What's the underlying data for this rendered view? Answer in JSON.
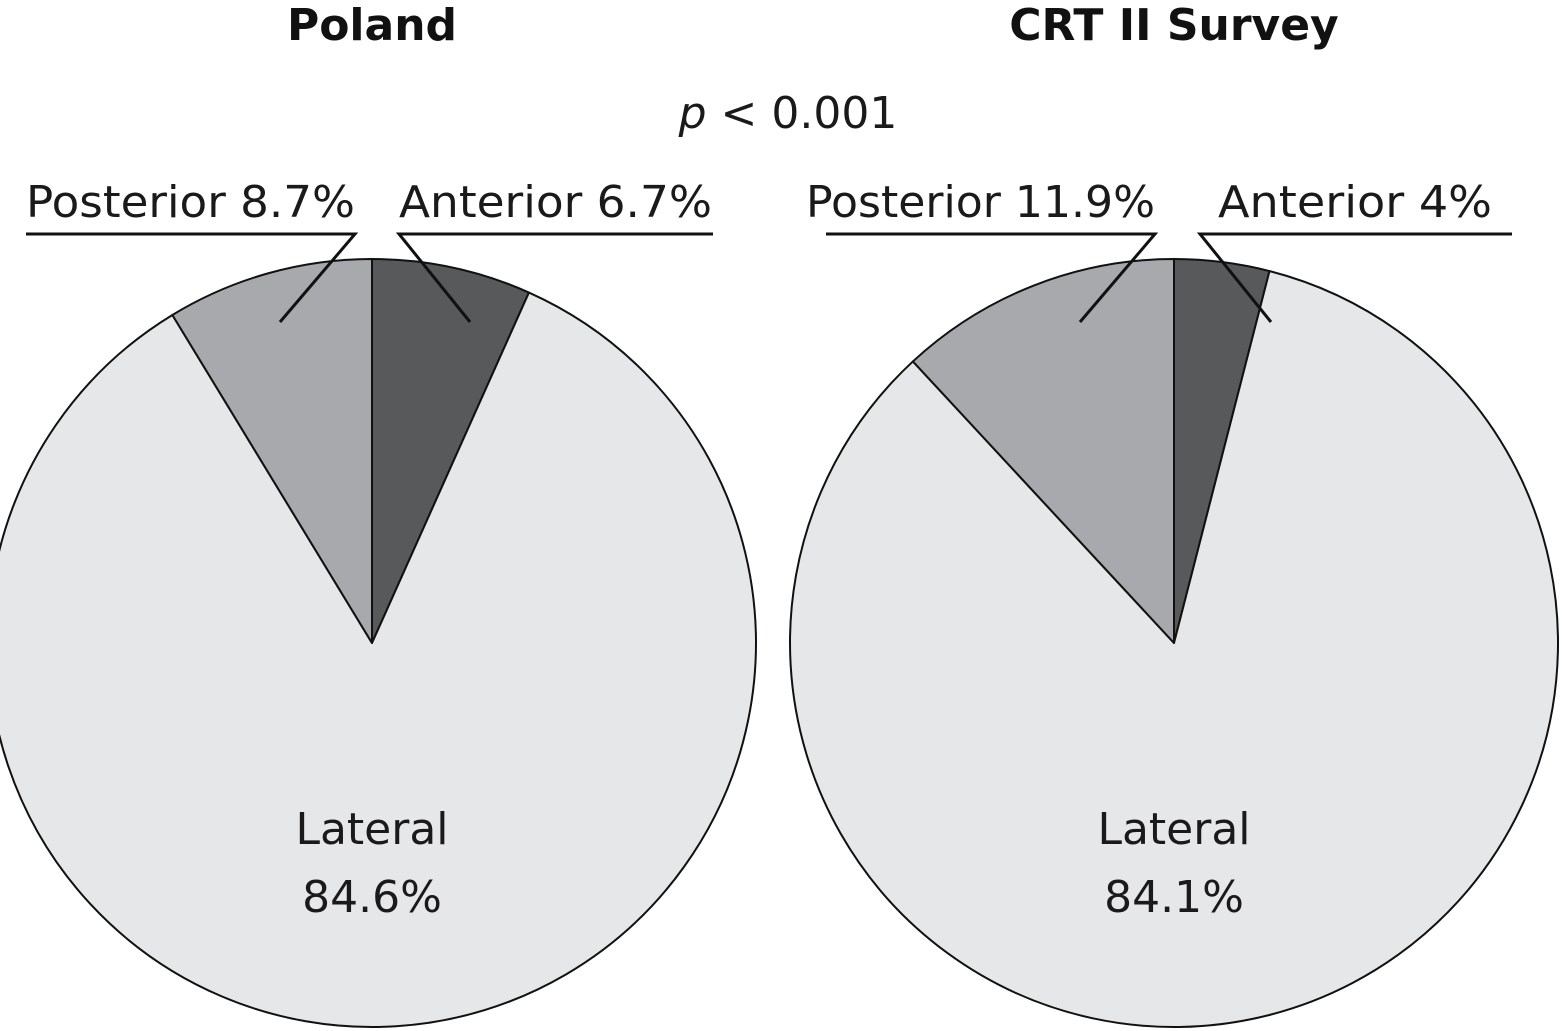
{
  "annotation": {
    "p_prefix": "p",
    "p_rest": " < 0.001"
  },
  "chart_data": [
    {
      "type": "pie",
      "title": "Poland",
      "slices": [
        {
          "name": "Anterior",
          "value": 6.7,
          "label": "Anterior 6.7%",
          "color": "#58595b"
        },
        {
          "name": "Lateral",
          "value": 84.6,
          "label_lines": [
            "Lateral",
            "84.6%"
          ],
          "color": "#e6e7e8"
        },
        {
          "name": "Posterior",
          "value": 8.7,
          "label": "Posterior 8.7%",
          "color": "#a7a9ac"
        }
      ]
    },
    {
      "type": "pie",
      "title": "CRT II Survey",
      "slices": [
        {
          "name": "Anterior",
          "value": 4,
          "label": "Anterior 4%",
          "color": "#58595b"
        },
        {
          "name": "Lateral",
          "value": 84.1,
          "label_lines": [
            "Lateral",
            "84.1%"
          ],
          "color": "#e6e7e8"
        },
        {
          "name": "Posterior",
          "value": 11.9,
          "label": "Posterior 11.9%",
          "color": "#a7a9ac"
        }
      ]
    }
  ]
}
